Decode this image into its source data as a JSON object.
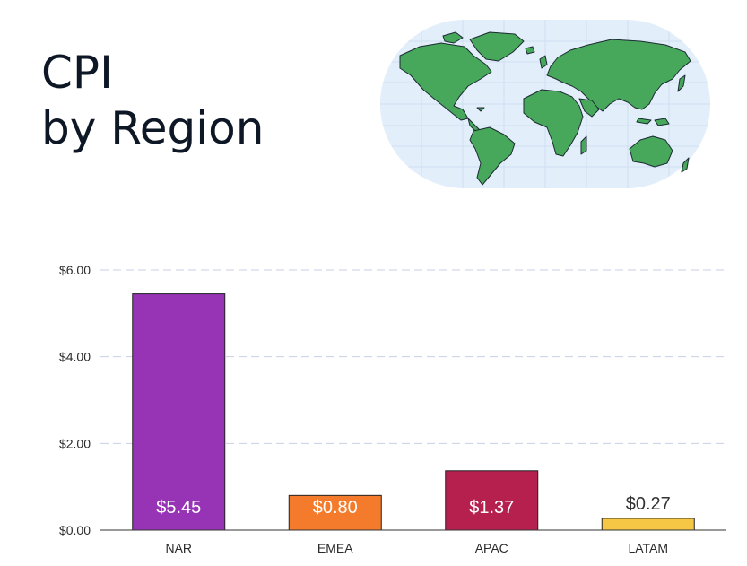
{
  "header": {
    "title_line1": "CPI",
    "title_line2": "by Region"
  },
  "map": {
    "icon": "world-map-icon",
    "ocean_color": "#e3eefb",
    "land_color": "#47a75a",
    "outline_color": "#1c2b33"
  },
  "chart_data": {
    "type": "bar",
    "title": "CPI by Region",
    "xlabel": "",
    "ylabel": "",
    "categories": [
      "NAR",
      "EMEA",
      "APAC",
      "LATAM"
    ],
    "values": [
      5.45,
      0.8,
      1.37,
      0.27
    ],
    "value_labels": [
      "$5.45",
      "$0.80",
      "$1.37",
      "$0.27"
    ],
    "colors": [
      "#9634b5",
      "#f47b2b",
      "#b5204f",
      "#f5c744"
    ],
    "label_colors": [
      "#ffffff",
      "#ffffff",
      "#ffffff",
      "#333333"
    ],
    "label_inside": [
      true,
      true,
      true,
      false
    ],
    "ylim": [
      0,
      6
    ],
    "yticks": [
      0,
      2,
      4,
      6
    ],
    "ytick_labels": [
      "$0.00",
      "$2.00",
      "$4.00",
      "$6.00"
    ],
    "grid": true,
    "legend": "none"
  }
}
